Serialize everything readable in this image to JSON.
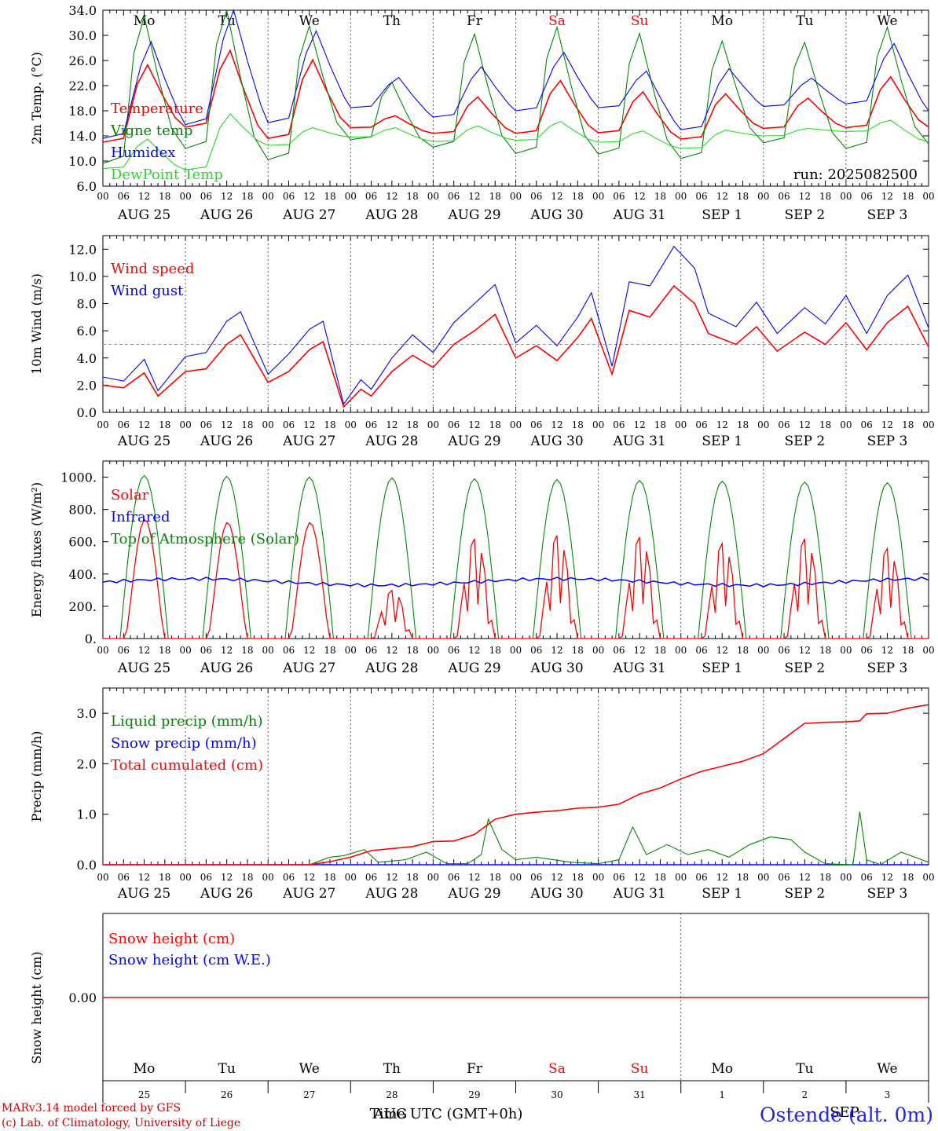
{
  "chart_data": {
    "type": "line",
    "run_label": "run: 2025082500",
    "days": [
      "Mo",
      "Tu",
      "We",
      "Th",
      "Fr",
      "Sa",
      "Su",
      "Mo",
      "Tu",
      "We"
    ],
    "weekend_days": [
      5,
      6
    ],
    "date_labels": [
      "AUG 25",
      "AUG 26",
      "AUG 27",
      "AUG 28",
      "AUG 29",
      "AUG 30",
      "AUG 31",
      "SEP  1",
      "SEP  2",
      "SEP  3"
    ],
    "hour_ticks": [
      "00",
      "06",
      "12",
      "18"
    ],
    "colors": {
      "red": "#ff0000",
      "green": "#008800",
      "blue": "#0000ff",
      "lightgreen": "#22dd22",
      "grey": "#999999"
    },
    "panels": [
      {
        "ylabel": "2m Temp. (°C)",
        "ylim": [
          6.0,
          34.0
        ],
        "yticks": [
          "6.0",
          "10.0",
          "14.0",
          "18.0",
          "22.0",
          "26.0",
          "30.0",
          "34.0"
        ],
        "series": [
          {
            "name": "Temperature",
            "color": "red",
            "peaks": [
              25.3,
              27.6,
              26.1,
              17.2,
              20.2,
              22.8,
              21.0,
              20.7,
              20.0,
              23.4
            ],
            "mins": [
              13.0,
              15.4,
              13.6,
              15.3,
              14.4,
              14.4,
              14.5,
              13.5,
              15.2,
              15.3
            ],
            "end": 15.4
          },
          {
            "name": "Vigne temp",
            "color": "green",
            "peaks": [
              33.0,
              34.0,
              31.5,
              22.5,
              30.2,
              31.3,
              30.3,
              29.1,
              28.9,
              31.3
            ],
            "mins": [
              9.6,
              12.0,
              10.2,
              13.4,
              12.2,
              11.2,
              11.1,
              10.4,
              12.9,
              12.0
            ],
            "end": 12.7
          },
          {
            "name": "Humidex",
            "color": "blue",
            "peaks": [
              29.0,
              34.0,
              30.7,
              23.3,
              25.0,
              27.3,
              24.3,
              24.7,
              23.2,
              28.7
            ],
            "mins": [
              13.6,
              15.8,
              16.1,
              18.5,
              17.0,
              18.0,
              18.5,
              15.0,
              18.7,
              19.1
            ],
            "end": 18.0
          },
          {
            "name": "DewPoint Temp",
            "color": "lightgreen",
            "peaks": [
              13.5,
              17.5,
              15.3,
              15.3,
              15.6,
              16.3,
              14.8,
              14.9,
              15.2,
              16.5
            ],
            "mins": [
              8.8,
              8.6,
              12.5,
              13.8,
              13.1,
              13.3,
              13.0,
              12.0,
              14.0,
              14.7
            ],
            "end": 13.0
          }
        ]
      },
      {
        "ylabel": "10m Wind (m/s)",
        "ylim": [
          0.0,
          13.0
        ],
        "yticks": [
          "0.0",
          "2.0",
          "4.0",
          "6.0",
          "8.0",
          "10.0",
          "12.0"
        ],
        "ref_line": 5.0,
        "series": [
          {
            "name": "Wind speed",
            "color": "red",
            "points": [
              [
                0,
                2.0
              ],
              [
                6,
                1.8
              ],
              [
                12,
                2.9
              ],
              [
                16,
                1.2
              ],
              [
                24,
                3.0
              ],
              [
                30,
                3.2
              ],
              [
                36,
                5.0
              ],
              [
                40,
                5.7
              ],
              [
                48,
                2.2
              ],
              [
                54,
                3.0
              ],
              [
                60,
                4.6
              ],
              [
                64,
                5.2
              ],
              [
                70,
                0.4
              ],
              [
                75,
                1.7
              ],
              [
                78,
                1.2
              ],
              [
                84,
                3.0
              ],
              [
                90,
                4.2
              ],
              [
                96,
                3.3
              ],
              [
                102,
                5.0
              ],
              [
                108,
                6.0
              ],
              [
                114,
                7.2
              ],
              [
                120,
                4.0
              ],
              [
                126,
                4.9
              ],
              [
                132,
                3.8
              ],
              [
                138,
                5.5
              ],
              [
                142,
                6.9
              ],
              [
                148,
                2.8
              ],
              [
                153,
                7.5
              ],
              [
                159,
                7.0
              ],
              [
                166,
                9.3
              ],
              [
                172,
                8.0
              ],
              [
                176,
                5.8
              ],
              [
                184,
                5.0
              ],
              [
                190,
                6.3
              ],
              [
                196,
                4.5
              ],
              [
                204,
                5.9
              ],
              [
                210,
                5.0
              ],
              [
                216,
                6.6
              ],
              [
                222,
                4.6
              ],
              [
                228,
                6.6
              ],
              [
                234,
                7.8
              ],
              [
                240,
                4.8
              ]
            ]
          },
          {
            "name": "Wind gust",
            "color": "blue",
            "points": [
              [
                0,
                2.6
              ],
              [
                6,
                2.3
              ],
              [
                12,
                3.9
              ],
              [
                16,
                1.6
              ],
              [
                24,
                4.1
              ],
              [
                30,
                4.4
              ],
              [
                36,
                6.7
              ],
              [
                40,
                7.4
              ],
              [
                48,
                2.8
              ],
              [
                54,
                4.3
              ],
              [
                60,
                6.1
              ],
              [
                64,
                6.7
              ],
              [
                70,
                0.6
              ],
              [
                75,
                2.4
              ],
              [
                78,
                1.7
              ],
              [
                84,
                4.0
              ],
              [
                90,
                5.7
              ],
              [
                96,
                4.4
              ],
              [
                102,
                6.6
              ],
              [
                108,
                8.0
              ],
              [
                114,
                9.4
              ],
              [
                120,
                5.1
              ],
              [
                126,
                6.4
              ],
              [
                132,
                4.9
              ],
              [
                138,
                7.0
              ],
              [
                142,
                8.8
              ],
              [
                148,
                3.4
              ],
              [
                153,
                9.6
              ],
              [
                159,
                9.3
              ],
              [
                166,
                12.2
              ],
              [
                172,
                10.6
              ],
              [
                176,
                7.3
              ],
              [
                184,
                6.3
              ],
              [
                190,
                8.1
              ],
              [
                196,
                5.8
              ],
              [
                204,
                7.7
              ],
              [
                210,
                6.5
              ],
              [
                216,
                8.6
              ],
              [
                222,
                5.8
              ],
              [
                228,
                8.6
              ],
              [
                234,
                10.1
              ],
              [
                240,
                6.2
              ]
            ]
          }
        ]
      },
      {
        "ylabel": "Energy fluxes (W/m²)",
        "ylim": [
          0,
          1100
        ],
        "yticks": [
          "0.",
          "200.",
          "400.",
          "600.",
          "800.",
          "1000."
        ],
        "series": [
          {
            "name": "Solar",
            "color": "red",
            "day_peaks": [
              740,
              720,
              720,
              300,
              620,
              640,
              630,
              590,
              620,
              560
            ]
          },
          {
            "name": "Infrared",
            "color": "blue",
            "level": 350
          },
          {
            "name": "Top of Atmosphere (Solar)",
            "color": "green",
            "day_peaks": [
              1010,
              1005,
              1000,
              995,
              990,
              985,
              980,
              975,
              970,
              965
            ]
          }
        ]
      },
      {
        "ylabel": "Precip (mm/h)",
        "ylim": [
          0.0,
          3.5
        ],
        "yticks": [
          "0.0",
          "1.0",
          "2.0",
          "3.0"
        ],
        "series": [
          {
            "name": "Liquid precip (mm/h)",
            "color": "green",
            "points": [
              [
                0,
                0
              ],
              [
                60,
                0
              ],
              [
                62,
                0.05
              ],
              [
                66,
                0.15
              ],
              [
                70,
                0.18
              ],
              [
                76,
                0.3
              ],
              [
                80,
                0.05
              ],
              [
                88,
                0.1
              ],
              [
                94,
                0.25
              ],
              [
                100,
                0.02
              ],
              [
                106,
                0.02
              ],
              [
                110,
                0.2
              ],
              [
                112,
                0.9
              ],
              [
                116,
                0.3
              ],
              [
                120,
                0.1
              ],
              [
                126,
                0.15
              ],
              [
                136,
                0.05
              ],
              [
                144,
                0.02
              ],
              [
                150,
                0.1
              ],
              [
                154,
                0.75
              ],
              [
                158,
                0.2
              ],
              [
                164,
                0.4
              ],
              [
                170,
                0.2
              ],
              [
                176,
                0.3
              ],
              [
                182,
                0.15
              ],
              [
                188,
                0.4
              ],
              [
                194,
                0.55
              ],
              [
                200,
                0.5
              ],
              [
                204,
                0.25
              ],
              [
                210,
                0.02
              ],
              [
                218,
                0.0
              ],
              [
                220,
                1.05
              ],
              [
                222,
                0.1
              ],
              [
                226,
                0.0
              ],
              [
                232,
                0.25
              ],
              [
                240,
                0.05
              ]
            ]
          },
          {
            "name": "Snow precip (mm/h)",
            "color": "blue",
            "level": 0.0
          },
          {
            "name": "Total cumulated (cm)",
            "color": "red",
            "points": [
              [
                0,
                0
              ],
              [
                60,
                0
              ],
              [
                66,
                0.06
              ],
              [
                72,
                0.15
              ],
              [
                78,
                0.28
              ],
              [
                84,
                0.32
              ],
              [
                90,
                0.36
              ],
              [
                96,
                0.46
              ],
              [
                102,
                0.47
              ],
              [
                108,
                0.6
              ],
              [
                114,
                0.9
              ],
              [
                120,
                1.0
              ],
              [
                126,
                1.04
              ],
              [
                132,
                1.07
              ],
              [
                138,
                1.12
              ],
              [
                144,
                1.14
              ],
              [
                150,
                1.2
              ],
              [
                156,
                1.4
              ],
              [
                162,
                1.52
              ],
              [
                168,
                1.7
              ],
              [
                174,
                1.85
              ],
              [
                180,
                1.95
              ],
              [
                186,
                2.05
              ],
              [
                192,
                2.2
              ],
              [
                198,
                2.5
              ],
              [
                204,
                2.8
              ],
              [
                210,
                2.82
              ],
              [
                216,
                2.83
              ],
              [
                220,
                2.85
              ],
              [
                222,
                2.99
              ],
              [
                228,
                3.0
              ],
              [
                234,
                3.1
              ],
              [
                240,
                3.17
              ]
            ]
          }
        ]
      },
      {
        "ylabel": "Snow height (cm)",
        "ytick": "0.00",
        "series": [
          {
            "name": "Snow height (cm)",
            "color": "red",
            "level": 0.0
          },
          {
            "name": "Snow height (cm W.E.)",
            "color": "blue",
            "level": 0.0
          }
        ]
      }
    ],
    "bottom_day_numbers": [
      "25",
      "26",
      "27",
      "28",
      "29",
      "30",
      "31",
      "1",
      "2",
      "3"
    ],
    "month_marker": "SEP",
    "xlabel": "Time UTC (GMT+0h)",
    "xlabel_overlay": "AUG",
    "footer_line1": "MARv3.14 model forced by GFS",
    "footer_line2": "(c) Lab. of Climatology, University of Liege",
    "station": "Ostende (alt. 0m)"
  }
}
